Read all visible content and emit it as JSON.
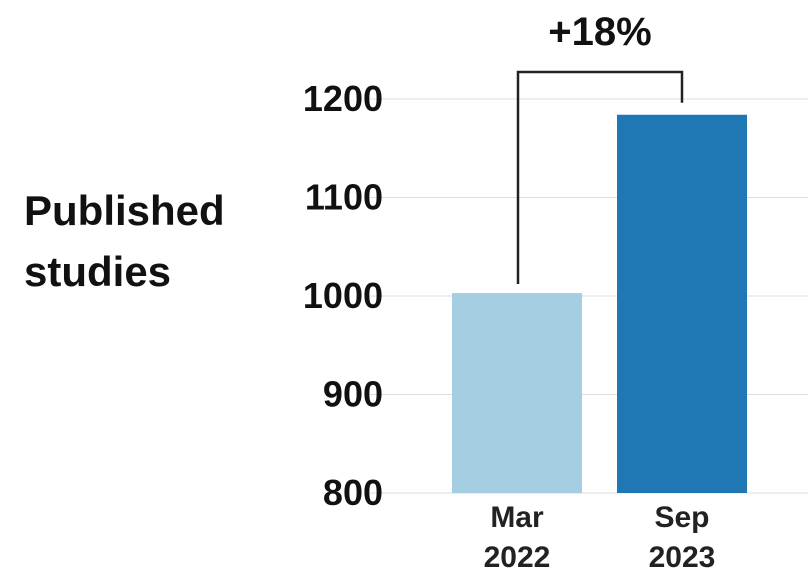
{
  "chart_data": {
    "type": "bar",
    "categories": [
      [
        "Mar",
        "2022"
      ],
      [
        "Sep",
        "2023"
      ]
    ],
    "values": [
      1003,
      1184
    ],
    "bar_colors": [
      "#a6cee3",
      "#1f78b4"
    ],
    "ylabel": [
      "Published",
      "studies"
    ],
    "yticks": [
      "800",
      "900",
      "1000",
      "1100",
      "1200"
    ],
    "ylim": [
      800,
      1220
    ],
    "grid": true,
    "annotation": {
      "text": "+18%",
      "from_category": 0,
      "to_category": 1
    }
  }
}
